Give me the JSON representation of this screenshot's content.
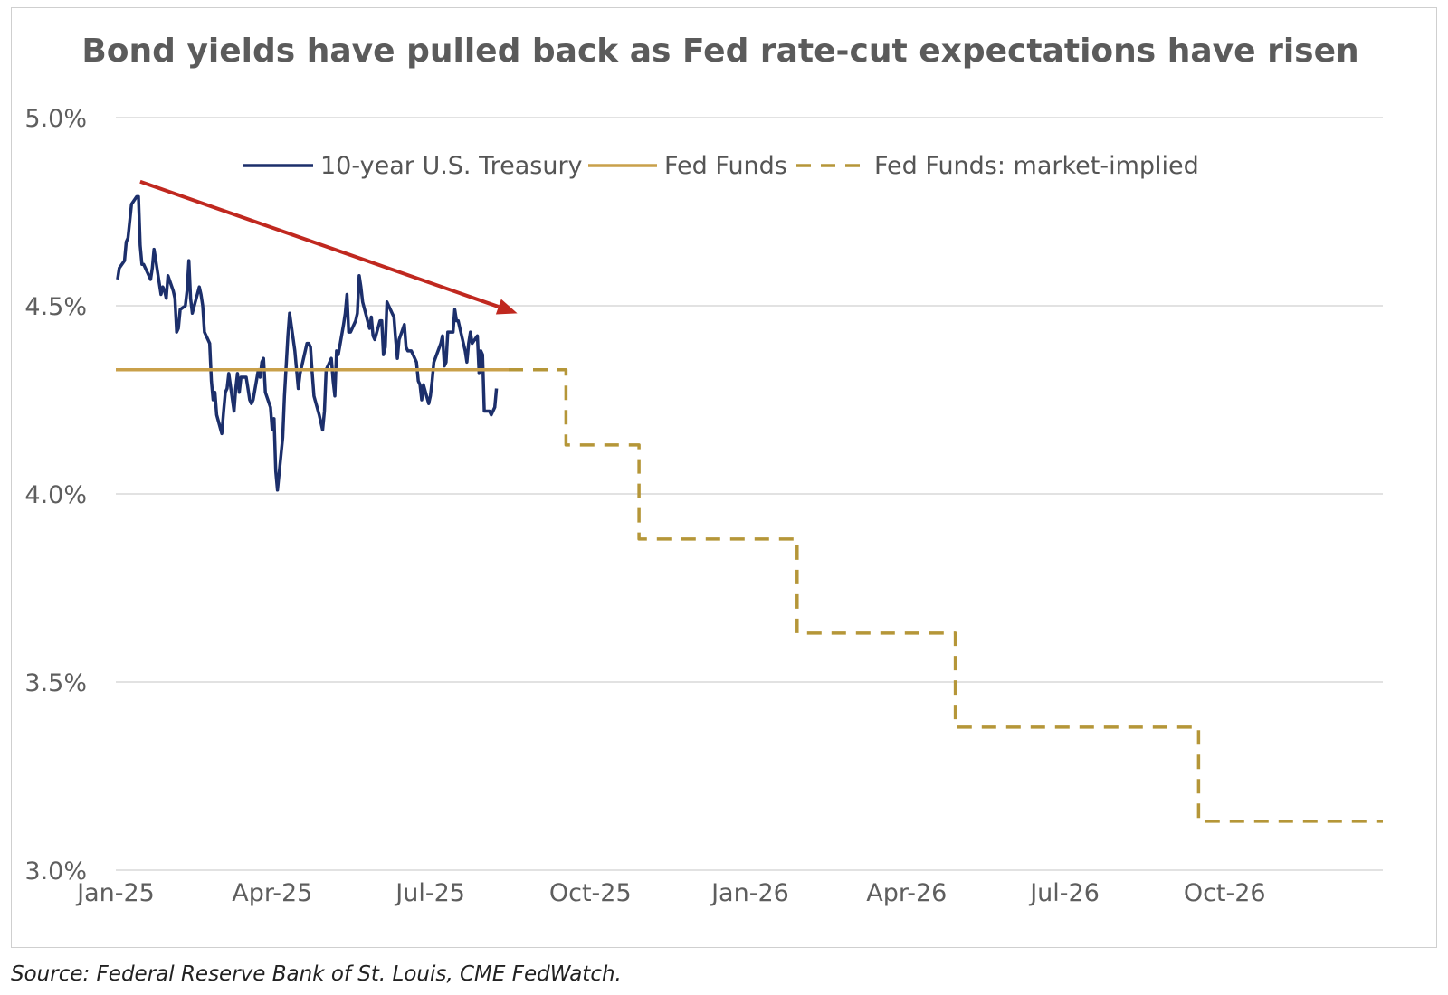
{
  "chart_data": {
    "type": "line",
    "title": "Bond yields have pulled back as Fed rate-cut expectations have risen",
    "xlabel": "",
    "ylabel": "",
    "x_ticks": [
      "Jan-25",
      "Apr-25",
      "Jul-25",
      "Oct-25",
      "Jan-26",
      "Apr-26",
      "Jul-26",
      "Oct-26"
    ],
    "x_range": [
      "2025-01-01",
      "2026-12-31"
    ],
    "y_ticks": [
      "3.0%",
      "3.5%",
      "4.0%",
      "4.5%",
      "5.0%"
    ],
    "ylim": [
      3.0,
      5.0
    ],
    "y_unit": "%",
    "grid": "horizontal",
    "legend_position": "top-center",
    "series": [
      {
        "name": "10-year U.S. Treasury",
        "style": "solid",
        "color": "#1c2f6b",
        "points": [
          [
            "2025-01-02",
            4.57
          ],
          [
            "2025-01-03",
            4.6
          ],
          [
            "2025-01-06",
            4.62
          ],
          [
            "2025-01-07",
            4.67
          ],
          [
            "2025-01-08",
            4.68
          ],
          [
            "2025-01-10",
            4.77
          ],
          [
            "2025-01-13",
            4.79
          ],
          [
            "2025-01-14",
            4.79
          ],
          [
            "2025-01-15",
            4.66
          ],
          [
            "2025-01-16",
            4.61
          ],
          [
            "2025-01-17",
            4.61
          ],
          [
            "2025-01-21",
            4.57
          ],
          [
            "2025-01-22",
            4.6
          ],
          [
            "2025-01-23",
            4.65
          ],
          [
            "2025-01-24",
            4.62
          ],
          [
            "2025-01-27",
            4.53
          ],
          [
            "2025-01-28",
            4.55
          ],
          [
            "2025-01-29",
            4.54
          ],
          [
            "2025-01-30",
            4.52
          ],
          [
            "2025-01-31",
            4.58
          ],
          [
            "2025-02-03",
            4.54
          ],
          [
            "2025-02-04",
            4.52
          ],
          [
            "2025-02-05",
            4.43
          ],
          [
            "2025-02-06",
            4.44
          ],
          [
            "2025-02-07",
            4.49
          ],
          [
            "2025-02-10",
            4.5
          ],
          [
            "2025-02-11",
            4.54
          ],
          [
            "2025-02-12",
            4.62
          ],
          [
            "2025-02-13",
            4.52
          ],
          [
            "2025-02-14",
            4.48
          ],
          [
            "2025-02-18",
            4.55
          ],
          [
            "2025-02-19",
            4.53
          ],
          [
            "2025-02-20",
            4.5
          ],
          [
            "2025-02-21",
            4.43
          ],
          [
            "2025-02-24",
            4.4
          ],
          [
            "2025-02-25",
            4.3
          ],
          [
            "2025-02-26",
            4.25
          ],
          [
            "2025-02-27",
            4.27
          ],
          [
            "2025-02-28",
            4.21
          ],
          [
            "2025-03-03",
            4.16
          ],
          [
            "2025-03-04",
            4.22
          ],
          [
            "2025-03-05",
            4.27
          ],
          [
            "2025-03-06",
            4.28
          ],
          [
            "2025-03-07",
            4.32
          ],
          [
            "2025-03-10",
            4.22
          ],
          [
            "2025-03-11",
            4.28
          ],
          [
            "2025-03-12",
            4.32
          ],
          [
            "2025-03-13",
            4.27
          ],
          [
            "2025-03-14",
            4.31
          ],
          [
            "2025-03-17",
            4.31
          ],
          [
            "2025-03-18",
            4.28
          ],
          [
            "2025-03-19",
            4.25
          ],
          [
            "2025-03-20",
            4.24
          ],
          [
            "2025-03-21",
            4.25
          ],
          [
            "2025-03-24",
            4.33
          ],
          [
            "2025-03-25",
            4.31
          ],
          [
            "2025-03-26",
            4.35
          ],
          [
            "2025-03-27",
            4.36
          ],
          [
            "2025-03-28",
            4.27
          ],
          [
            "2025-03-31",
            4.23
          ],
          [
            "2025-04-01",
            4.17
          ],
          [
            "2025-04-02",
            4.2
          ],
          [
            "2025-04-03",
            4.06
          ],
          [
            "2025-04-04",
            4.01
          ],
          [
            "2025-04-07",
            4.15
          ],
          [
            "2025-04-08",
            4.26
          ],
          [
            "2025-04-09",
            4.34
          ],
          [
            "2025-04-10",
            4.42
          ],
          [
            "2025-04-11",
            4.48
          ],
          [
            "2025-04-14",
            4.38
          ],
          [
            "2025-04-15",
            4.33
          ],
          [
            "2025-04-16",
            4.28
          ],
          [
            "2025-04-17",
            4.32
          ],
          [
            "2025-04-21",
            4.4
          ],
          [
            "2025-04-22",
            4.4
          ],
          [
            "2025-04-23",
            4.39
          ],
          [
            "2025-04-24",
            4.32
          ],
          [
            "2025-04-25",
            4.26
          ],
          [
            "2025-04-28",
            4.21
          ],
          [
            "2025-04-29",
            4.19
          ],
          [
            "2025-04-30",
            4.17
          ],
          [
            "2025-05-01",
            4.22
          ],
          [
            "2025-05-02",
            4.33
          ],
          [
            "2025-05-05",
            4.36
          ],
          [
            "2025-05-06",
            4.3
          ],
          [
            "2025-05-07",
            4.26
          ],
          [
            "2025-05-08",
            4.38
          ],
          [
            "2025-05-09",
            4.37
          ],
          [
            "2025-05-12",
            4.45
          ],
          [
            "2025-05-13",
            4.48
          ],
          [
            "2025-05-14",
            4.53
          ],
          [
            "2025-05-15",
            4.43
          ],
          [
            "2025-05-16",
            4.43
          ],
          [
            "2025-05-19",
            4.46
          ],
          [
            "2025-05-20",
            4.48
          ],
          [
            "2025-05-21",
            4.58
          ],
          [
            "2025-05-22",
            4.55
          ],
          [
            "2025-05-23",
            4.51
          ],
          [
            "2025-05-27",
            4.44
          ],
          [
            "2025-05-28",
            4.47
          ],
          [
            "2025-05-29",
            4.42
          ],
          [
            "2025-05-30",
            4.41
          ],
          [
            "2025-06-02",
            4.46
          ],
          [
            "2025-06-03",
            4.46
          ],
          [
            "2025-06-04",
            4.37
          ],
          [
            "2025-06-05",
            4.39
          ],
          [
            "2025-06-06",
            4.51
          ],
          [
            "2025-06-09",
            4.48
          ],
          [
            "2025-06-10",
            4.47
          ],
          [
            "2025-06-11",
            4.41
          ],
          [
            "2025-06-12",
            4.36
          ],
          [
            "2025-06-13",
            4.41
          ],
          [
            "2025-06-16",
            4.45
          ],
          [
            "2025-06-17",
            4.39
          ],
          [
            "2025-06-18",
            4.38
          ],
          [
            "2025-06-20",
            4.38
          ],
          [
            "2025-06-23",
            4.35
          ],
          [
            "2025-06-24",
            4.3
          ],
          [
            "2025-06-25",
            4.29
          ],
          [
            "2025-06-26",
            4.25
          ],
          [
            "2025-06-27",
            4.29
          ],
          [
            "2025-06-30",
            4.24
          ],
          [
            "2025-07-01",
            4.26
          ],
          [
            "2025-07-02",
            4.3
          ],
          [
            "2025-07-03",
            4.35
          ],
          [
            "2025-07-07",
            4.4
          ],
          [
            "2025-07-08",
            4.42
          ],
          [
            "2025-07-09",
            4.34
          ],
          [
            "2025-07-10",
            4.35
          ],
          [
            "2025-07-11",
            4.43
          ],
          [
            "2025-07-14",
            4.43
          ],
          [
            "2025-07-15",
            4.49
          ],
          [
            "2025-07-16",
            4.46
          ],
          [
            "2025-07-17",
            4.46
          ],
          [
            "2025-07-18",
            4.44
          ],
          [
            "2025-07-21",
            4.38
          ],
          [
            "2025-07-22",
            4.35
          ],
          [
            "2025-07-23",
            4.4
          ],
          [
            "2025-07-24",
            4.43
          ],
          [
            "2025-07-25",
            4.4
          ],
          [
            "2025-07-28",
            4.42
          ],
          [
            "2025-07-29",
            4.32
          ],
          [
            "2025-07-30",
            4.38
          ],
          [
            "2025-07-31",
            4.37
          ],
          [
            "2025-08-01",
            4.22
          ],
          [
            "2025-08-04",
            4.22
          ],
          [
            "2025-08-05",
            4.21
          ],
          [
            "2025-08-06",
            4.22
          ],
          [
            "2025-08-07",
            4.23
          ],
          [
            "2025-08-08",
            4.28
          ]
        ]
      },
      {
        "name": "Fed Funds",
        "style": "solid",
        "color": "#c9a04a",
        "points": [
          [
            "2025-01-01",
            4.33
          ],
          [
            "2025-08-15",
            4.33
          ]
        ]
      },
      {
        "name": "Fed Funds: market-implied",
        "style": "dashed",
        "color": "#b59638",
        "steps": [
          [
            "2025-08-15",
            4.33
          ],
          [
            "2025-09-17",
            4.13
          ],
          [
            "2025-10-29",
            3.88
          ],
          [
            "2026-01-28",
            3.63
          ],
          [
            "2026-04-29",
            3.38
          ],
          [
            "2026-09-16",
            3.13
          ],
          [
            "2026-12-31",
            3.13
          ]
        ]
      }
    ],
    "annotations": [
      {
        "type": "arrow",
        "color": "#c0281f",
        "from": [
          "2025-01-15",
          4.83
        ],
        "to": [
          "2025-08-20",
          4.48
        ]
      }
    ]
  },
  "source": "Source: Federal Reserve Bank of St. Louis, CME FedWatch."
}
